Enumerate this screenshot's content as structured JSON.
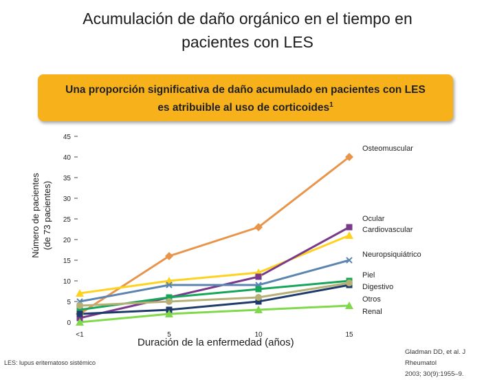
{
  "slide": {
    "title_line1": "Acumulación de daño orgánico en el tiempo en",
    "title_line2": "pacientes con LES",
    "banner_line1": "Una proporción significativa de daño acumulado en pacientes con LES",
    "banner_line2": "es atribuible al uso de corticoides",
    "banner_sup": "1",
    "ylabel_line1": "Número de pacientes",
    "ylabel_line2": "(de 73 pacientes)",
    "xlabel": "Duración de la enfermedad (años)",
    "abbreviation": "LES: lupus eritematoso sistémico",
    "reference_line1": "Gladman DD, et al. J Rheumatol",
    "reference_line2": "2003; 30(9):1955–9."
  },
  "chart_data": {
    "type": "line",
    "categories": [
      "<1",
      "5",
      "10",
      "15"
    ],
    "ylim": [
      0,
      45
    ],
    "yticks": [
      0,
      5,
      10,
      15,
      20,
      25,
      30,
      35,
      40,
      45
    ],
    "xlabel": "Duración de la enfermedad (años)",
    "ylabel": "Número de pacientes (de 73 pacientes)",
    "series": [
      {
        "name": "Osteomuscular",
        "color": "#e8944a",
        "marker": "diamond",
        "values": [
          2,
          16,
          23,
          40
        ]
      },
      {
        "name": "Ocular",
        "color": "#ffd21f",
        "marker": "triangle",
        "values": [
          7,
          10,
          12,
          21
        ]
      },
      {
        "name": "Cardiovascular",
        "color": "#7a3a8c",
        "marker": "square",
        "values": [
          1,
          6,
          11,
          23
        ]
      },
      {
        "name": "Neuropsiquiátrico",
        "color": "#5b85b0",
        "marker": "x",
        "values": [
          5,
          9,
          9,
          15
        ]
      },
      {
        "name": "Piel",
        "color": "#17a55a",
        "marker": "square",
        "values": [
          3,
          6,
          8,
          10
        ]
      },
      {
        "name": "Digestivo",
        "color": "#1f3b6b",
        "marker": "square",
        "values": [
          2,
          3,
          5,
          9
        ]
      },
      {
        "name": "Otros",
        "color": "#b5b077",
        "marker": "circle",
        "values": [
          4,
          5,
          6,
          9.5
        ]
      },
      {
        "name": "Renal",
        "color": "#7fd94a",
        "marker": "triangle",
        "values": [
          0,
          2,
          3,
          4
        ]
      }
    ],
    "legend_labels": [
      {
        "text": "Osteomuscular",
        "position": "top-right"
      },
      {
        "text": "Ocular",
        "position": "right"
      },
      {
        "text": "Cardiovascular",
        "position": "right"
      },
      {
        "text": "Neuropsiquiátrico",
        "position": "right"
      },
      {
        "text": "Piel",
        "position": "right"
      },
      {
        "text": "Digestivo",
        "position": "right"
      },
      {
        "text": "Otros",
        "position": "right"
      },
      {
        "text": "Renal",
        "position": "right"
      }
    ]
  }
}
